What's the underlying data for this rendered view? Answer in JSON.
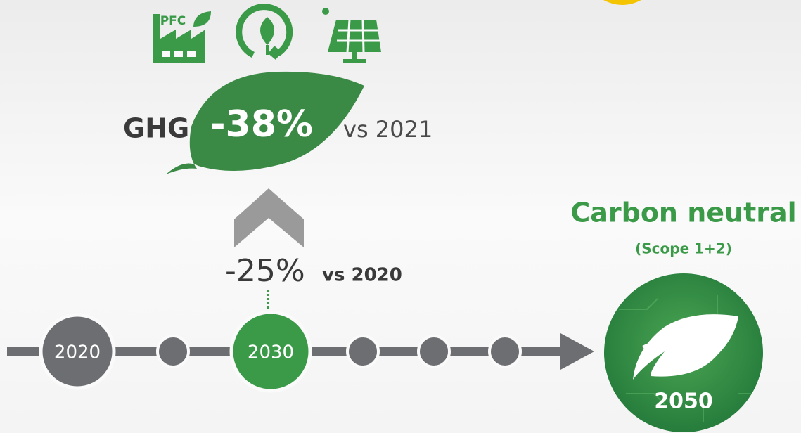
{
  "icons": {
    "factory_label": "PFC"
  },
  "target_2030": {
    "prefix": "GHG",
    "value": "-38%",
    "suffix": "vs 2021"
  },
  "interim": {
    "value": "-25%",
    "suffix": "vs 2020"
  },
  "timeline": {
    "years": [
      "2020",
      "2030"
    ]
  },
  "goal": {
    "title": "Carbon neutral",
    "subtitle": "(Scope 1+2)",
    "year": "2050"
  }
}
